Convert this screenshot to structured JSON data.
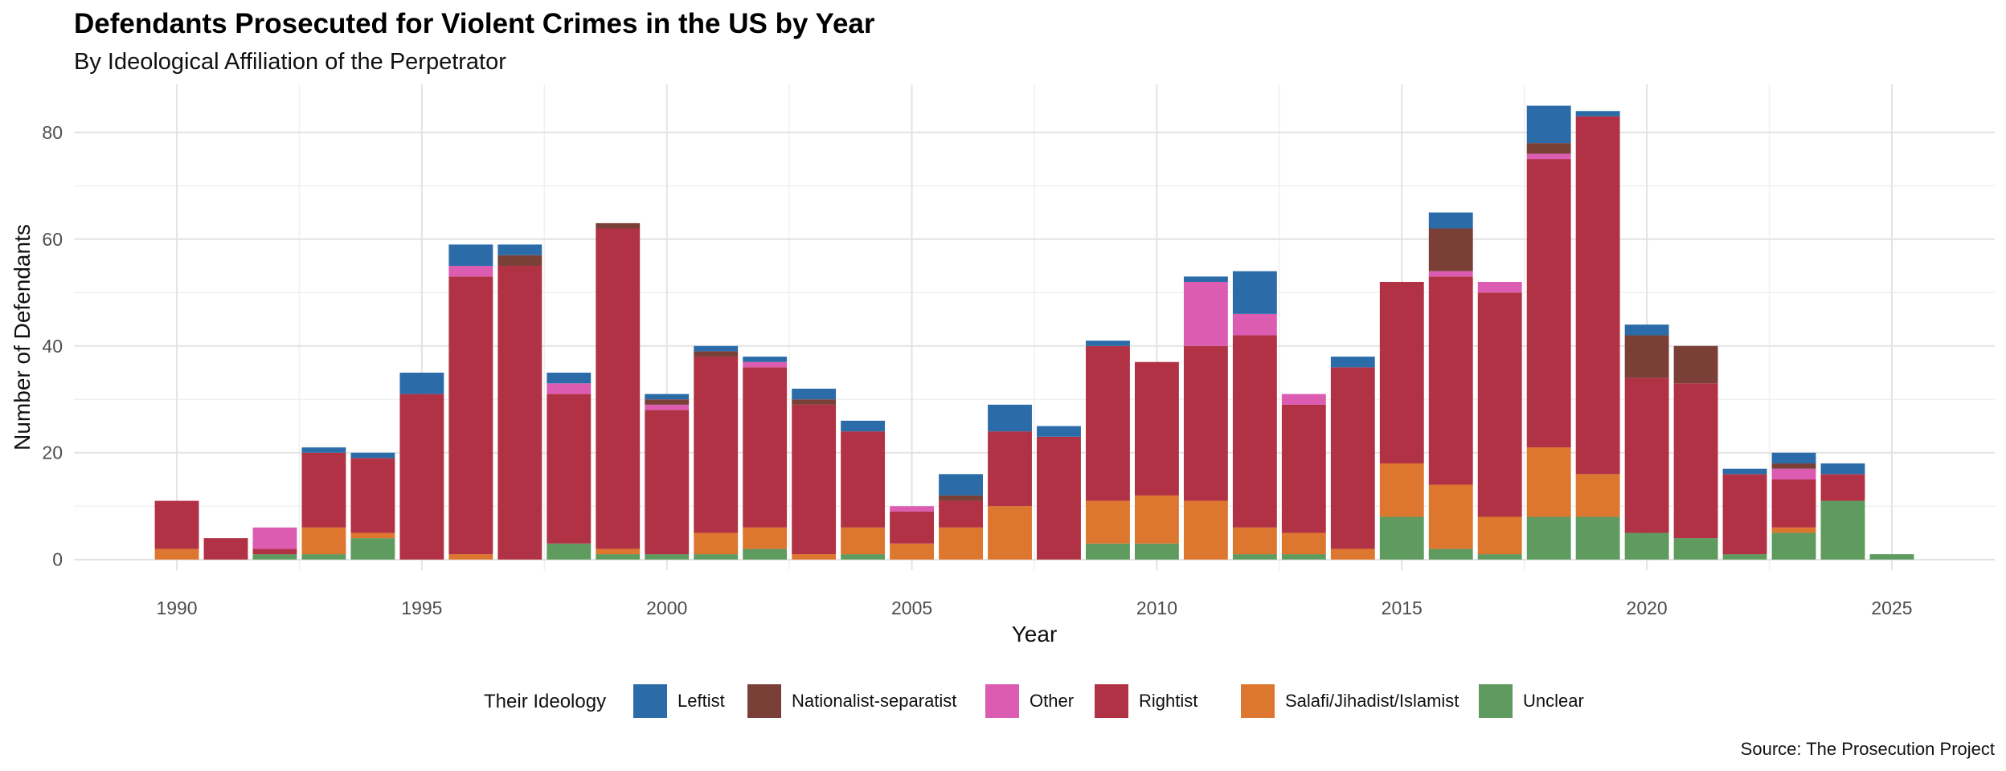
{
  "chart_data": {
    "type": "bar",
    "stacked": true,
    "title": "Defendants Prosecuted for Violent Crimes in the US by Year",
    "subtitle": "By Ideological Affiliation of the Perpetrator",
    "xlabel": "Year",
    "ylabel": "Number of Defendants",
    "caption": "Source: The Prosecution Project",
    "legend_title": "Their Ideology",
    "legend_position": "bottom",
    "grid": true,
    "xlim": [
      1987.9,
      2027.1
    ],
    "ylim": [
      -2,
      89
    ],
    "x_ticks": [
      "1990",
      "1995",
      "2000",
      "2005",
      "2010",
      "2015",
      "2020",
      "2025"
    ],
    "y_ticks": [
      "0",
      "20",
      "40",
      "60",
      "80"
    ],
    "colors": {
      "Leftist": "#2b6ca8",
      "Nationalist-separatist": "#7a4038",
      "Other": "#dc5cb2",
      "Rightist": "#b13244",
      "Salafi/Jihadist/Islamist": "#dd772f",
      "Unclear": "#5f9a5f"
    },
    "legend": [
      "Leftist",
      "Nationalist-separatist",
      "Other",
      "Rightist",
      "Salafi/Jihadist/Islamist",
      "Unclear"
    ],
    "stack_order_bottom_to_top": [
      "Unclear",
      "Salafi/Jihadist/Islamist",
      "Rightist",
      "Other",
      "Nationalist-separatist",
      "Leftist"
    ],
    "years": [
      1990,
      1991,
      1992,
      1993,
      1994,
      1995,
      1996,
      1997,
      1998,
      1999,
      2000,
      2001,
      2002,
      2003,
      2004,
      2005,
      2006,
      2007,
      2008,
      2009,
      2010,
      2011,
      2012,
      2013,
      2014,
      2015,
      2016,
      2017,
      2018,
      2019,
      2020,
      2021,
      2022,
      2023,
      2024,
      2025
    ],
    "series": [
      {
        "name": "Unclear",
        "values": [
          0,
          0,
          1,
          1,
          4,
          0,
          0,
          0,
          3,
          1,
          1,
          1,
          2,
          0,
          1,
          0,
          0,
          0,
          0,
          3,
          3,
          0,
          1,
          1,
          0,
          8,
          2,
          1,
          8,
          8,
          5,
          4,
          1,
          5,
          11,
          1
        ]
      },
      {
        "name": "Salafi/Jihadist/Islamist",
        "values": [
          2,
          0,
          0,
          5,
          1,
          0,
          1,
          0,
          0,
          1,
          0,
          4,
          4,
          1,
          5,
          3,
          6,
          10,
          0,
          8,
          9,
          11,
          5,
          4,
          2,
          10,
          12,
          7,
          13,
          8,
          0,
          0,
          0,
          1,
          0,
          0
        ]
      },
      {
        "name": "Rightist",
        "values": [
          9,
          4,
          1,
          14,
          14,
          31,
          52,
          55,
          28,
          60,
          27,
          33,
          30,
          28,
          18,
          6,
          5,
          14,
          23,
          29,
          25,
          29,
          36,
          24,
          34,
          34,
          39,
          42,
          54,
          67,
          29,
          29,
          15,
          9,
          5,
          0
        ]
      },
      {
        "name": "Other",
        "values": [
          0,
          0,
          4,
          0,
          0,
          0,
          2,
          0,
          2,
          0,
          1,
          0,
          1,
          0,
          0,
          1,
          0,
          0,
          0,
          0,
          0,
          12,
          4,
          2,
          0,
          0,
          1,
          2,
          1,
          0,
          0,
          0,
          0,
          2,
          0,
          0
        ]
      },
      {
        "name": "Nationalist-separatist",
        "values": [
          0,
          0,
          0,
          0,
          0,
          0,
          0,
          2,
          0,
          1,
          1,
          1,
          0,
          1,
          0,
          0,
          1,
          0,
          0,
          0,
          0,
          0,
          0,
          0,
          0,
          0,
          8,
          0,
          2,
          0,
          8,
          7,
          0,
          1,
          0,
          0
        ]
      },
      {
        "name": "Leftist",
        "values": [
          0,
          0,
          0,
          1,
          1,
          4,
          4,
          2,
          2,
          0,
          1,
          1,
          1,
          2,
          2,
          0,
          4,
          5,
          2,
          1,
          0,
          1,
          8,
          0,
          2,
          0,
          3,
          0,
          7,
          1,
          2,
          0,
          1,
          2,
          2,
          0
        ]
      }
    ]
  }
}
